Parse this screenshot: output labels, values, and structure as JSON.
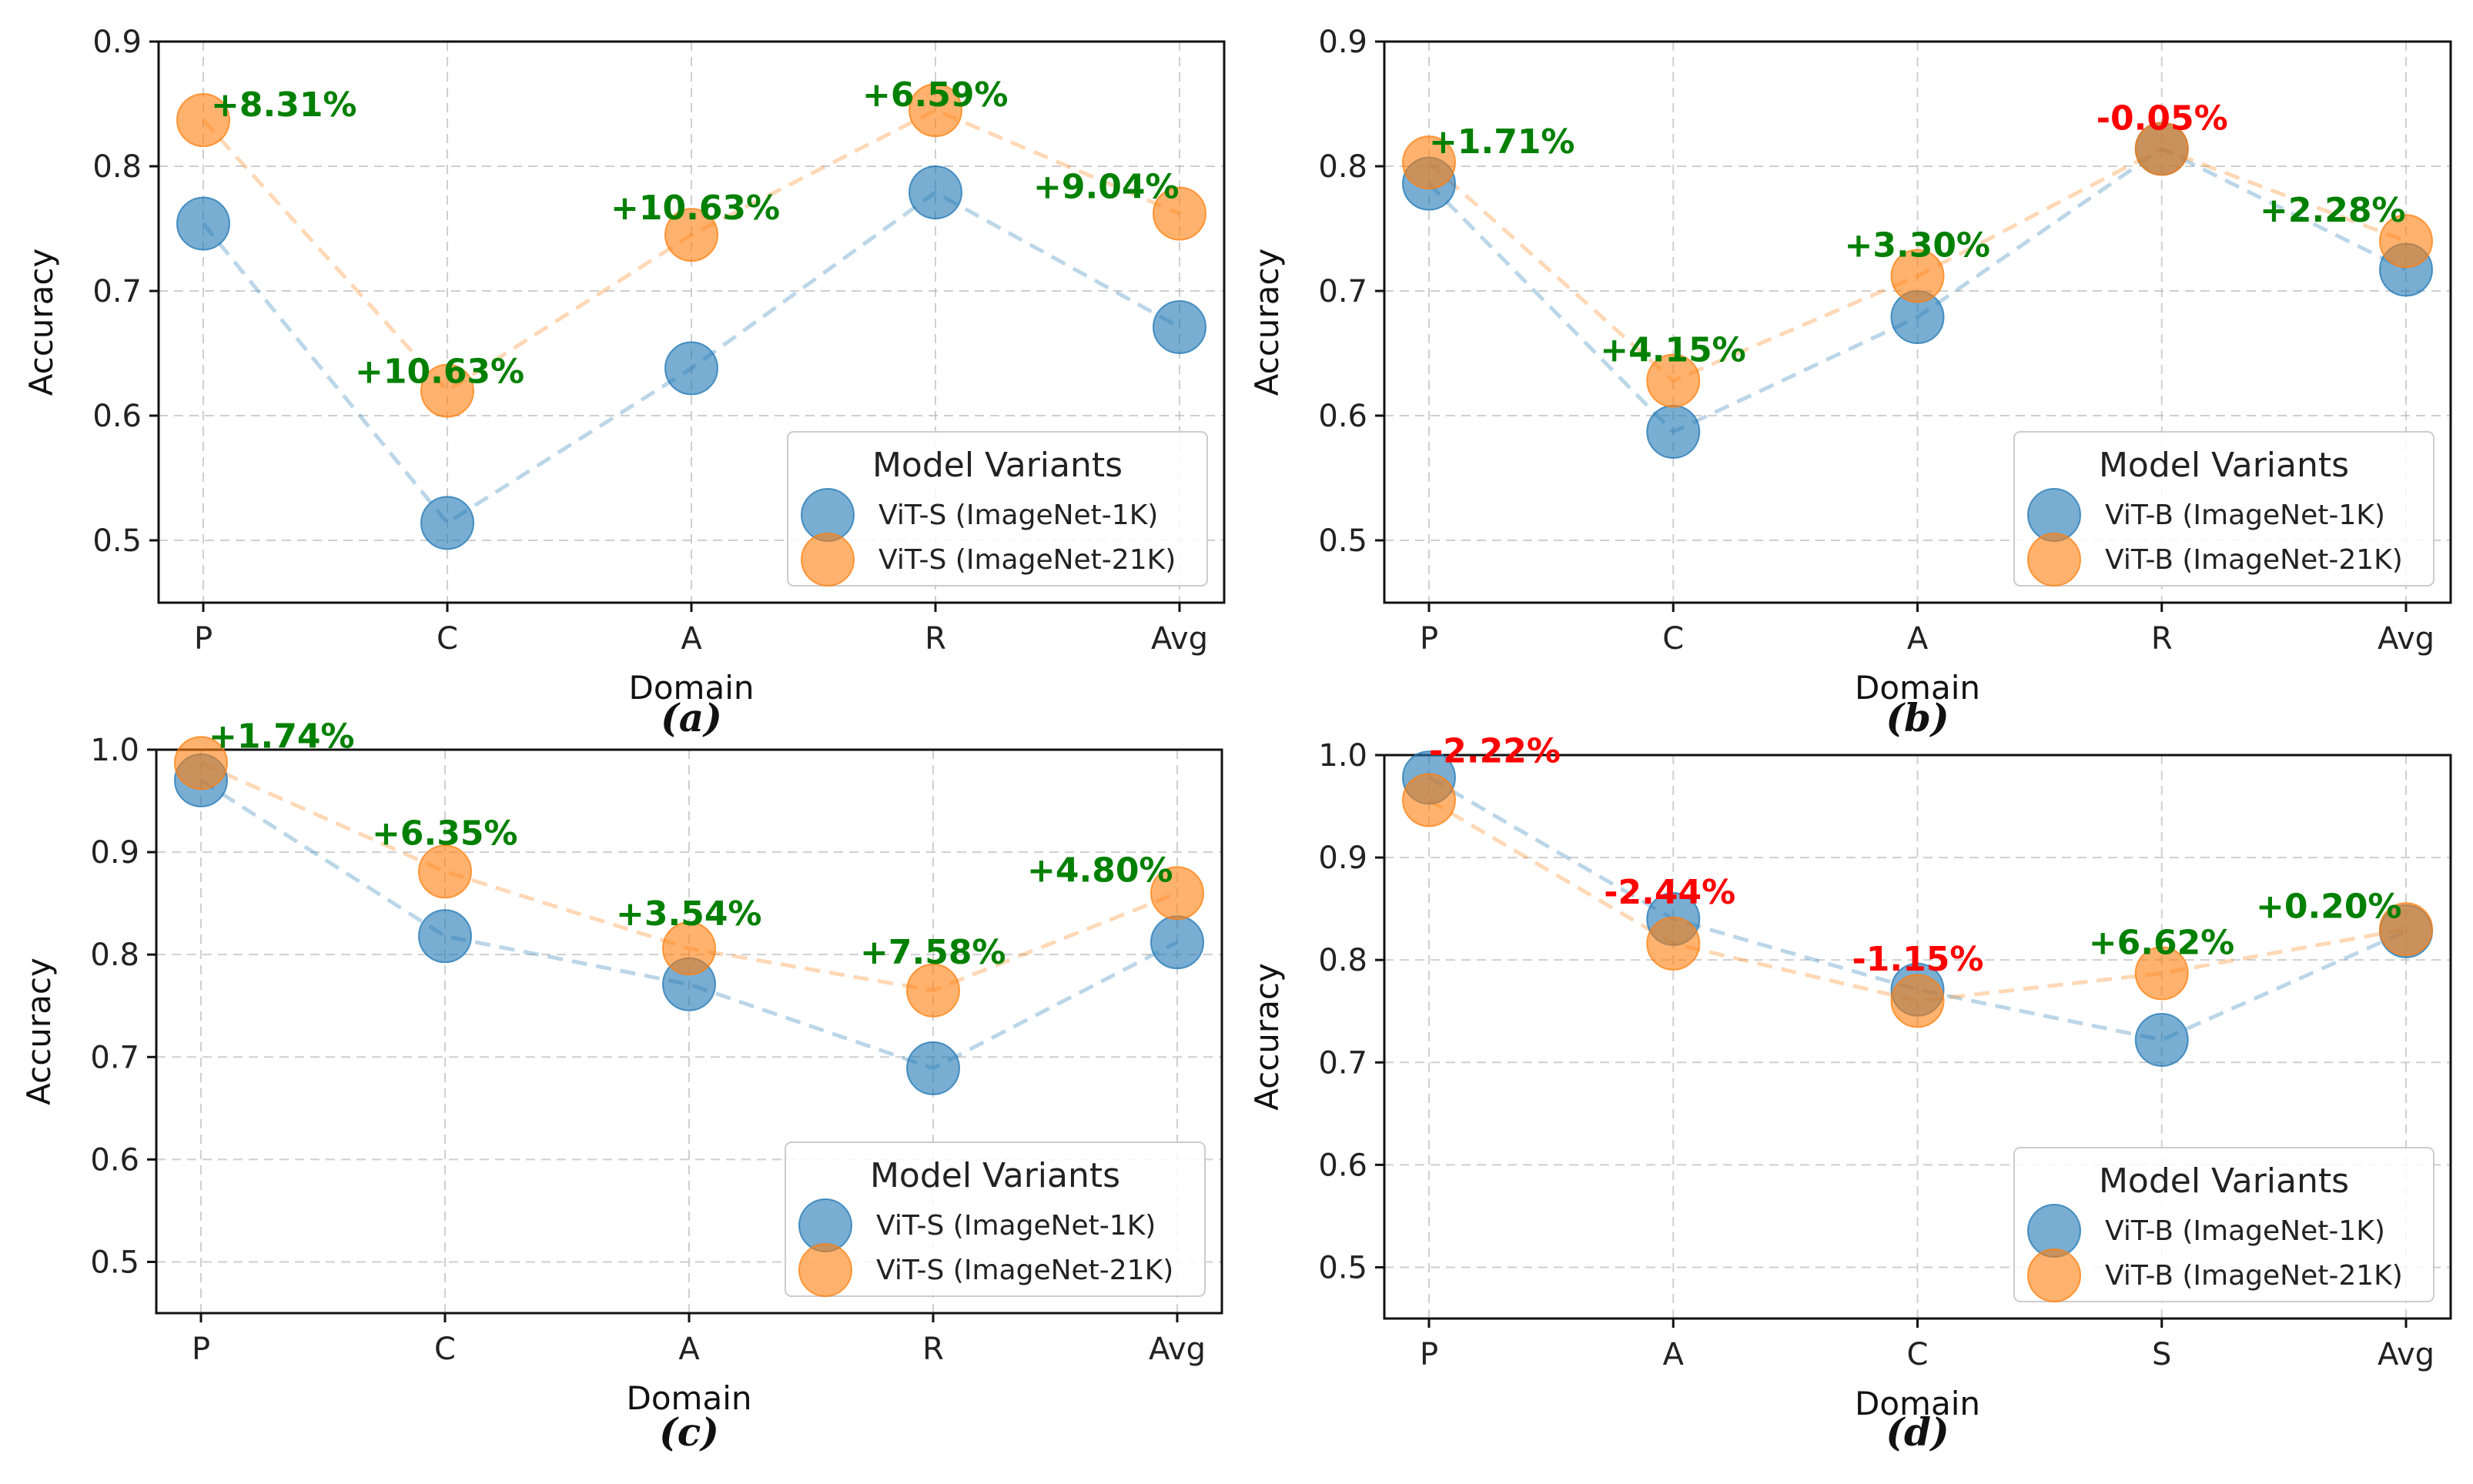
{
  "colors": {
    "series_1k": "#1f77b4",
    "series_21k": "#ff7f0e",
    "gain": "#008000",
    "loss": "#ff0000"
  },
  "chart_data": [
    {
      "panel": "a",
      "type": "scatter",
      "caption": "(a)",
      "xlabel": "Domain",
      "ylabel": "Accuracy",
      "categories": [
        "P",
        "C",
        "A",
        "R",
        "Avg"
      ],
      "ylim": [
        0.45,
        0.9
      ],
      "yticks": [
        "0.5",
        "0.6",
        "0.7",
        "0.8",
        "0.9"
      ],
      "legend": {
        "title": "Model Variants",
        "position": "lower-right"
      },
      "series": [
        {
          "name": "ViT-S (ImageNet-1K)",
          "values": [
            0.754,
            0.514,
            0.638,
            0.779,
            0.671
          ]
        },
        {
          "name": "ViT-S (ImageNet-21K)",
          "values": [
            0.837,
            0.62,
            0.745,
            0.845,
            0.762
          ]
        }
      ],
      "annotations": [
        "+8.31%",
        "+10.63%",
        "+10.63%",
        "+6.59%",
        "+9.04%"
      ]
    },
    {
      "panel": "b",
      "type": "scatter",
      "caption": "(b)",
      "xlabel": "Domain",
      "ylabel": "Accuracy",
      "categories": [
        "P",
        "C",
        "A",
        "R",
        "Avg"
      ],
      "ylim": [
        0.45,
        0.9
      ],
      "yticks": [
        "0.5",
        "0.6",
        "0.7",
        "0.8",
        "0.9"
      ],
      "legend": {
        "title": "Model Variants",
        "position": "lower-right"
      },
      "series": [
        {
          "name": "ViT-B (ImageNet-1K)",
          "values": [
            0.786,
            0.587,
            0.679,
            0.814,
            0.717
          ]
        },
        {
          "name": "ViT-B (ImageNet-21K)",
          "values": [
            0.803,
            0.628,
            0.712,
            0.814,
            0.74
          ]
        }
      ],
      "annotations": [
        "+1.71%",
        "+4.15%",
        "+3.30%",
        "-0.05%",
        "+2.28%"
      ]
    },
    {
      "panel": "c",
      "type": "scatter",
      "caption": "(c)",
      "xlabel": "Domain",
      "ylabel": "Accuracy",
      "categories": [
        "P",
        "C",
        "A",
        "R",
        "Avg"
      ],
      "ylim": [
        0.45,
        1.0
      ],
      "yticks": [
        "0.5",
        "0.6",
        "0.7",
        "0.8",
        "0.9",
        "1.0"
      ],
      "legend": {
        "title": "Model Variants",
        "position": "lower-right"
      },
      "series": [
        {
          "name": "ViT-S (ImageNet-1K)",
          "values": [
            0.97,
            0.818,
            0.771,
            0.689,
            0.812
          ]
        },
        {
          "name": "ViT-S (ImageNet-21K)",
          "values": [
            0.987,
            0.881,
            0.806,
            0.765,
            0.86
          ]
        }
      ],
      "annotations": [
        "+1.74%",
        "+6.35%",
        "+3.54%",
        "+7.58%",
        "+4.80%"
      ]
    },
    {
      "panel": "d",
      "type": "scatter",
      "caption": "(d)",
      "xlabel": "Domain",
      "ylabel": "Accuracy",
      "categories": [
        "P",
        "A",
        "C",
        "S",
        "Avg"
      ],
      "ylim": [
        0.45,
        1.0
      ],
      "yticks": [
        "0.5",
        "0.6",
        "0.7",
        "0.8",
        "0.9",
        "1.0"
      ],
      "legend": {
        "title": "Model Variants",
        "position": "lower-right"
      },
      "series": [
        {
          "name": "ViT-B (ImageNet-1K)",
          "values": [
            0.978,
            0.84,
            0.771,
            0.722,
            0.828
          ]
        },
        {
          "name": "ViT-B (ImageNet-21K)",
          "values": [
            0.956,
            0.816,
            0.76,
            0.787,
            0.83
          ]
        }
      ],
      "annotations": [
        "-2.22%",
        "-2.44%",
        "-1.15%",
        "+6.62%",
        "+0.20%"
      ]
    }
  ]
}
